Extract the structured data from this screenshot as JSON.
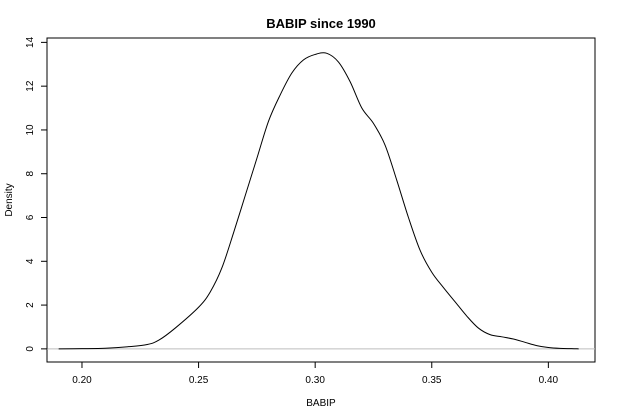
{
  "chart_data": {
    "type": "line",
    "title": "BABIP since 1990",
    "xlabel": "BABIP",
    "ylabel": "Density",
    "xlim": [
      0.185,
      0.42
    ],
    "ylim": [
      -0.6,
      14.2
    ],
    "x_ticks": [
      0.2,
      0.25,
      0.3,
      0.35,
      0.4
    ],
    "x_tick_labels": [
      "0.20",
      "0.25",
      "0.30",
      "0.35",
      "0.40"
    ],
    "y_ticks": [
      0,
      2,
      4,
      6,
      8,
      10,
      12,
      14
    ],
    "y_tick_labels": [
      "0",
      "2",
      "4",
      "6",
      "8",
      "10",
      "12",
      "14"
    ],
    "reference_line_y": 0,
    "grid": false,
    "series": [
      {
        "x": [
          0.19,
          0.2,
          0.21,
          0.22,
          0.228,
          0.233,
          0.24,
          0.25,
          0.255,
          0.26,
          0.265,
          0.27,
          0.275,
          0.28,
          0.285,
          0.29,
          0.295,
          0.3,
          0.305,
          0.31,
          0.315,
          0.32,
          0.325,
          0.33,
          0.335,
          0.34,
          0.345,
          0.35,
          0.355,
          0.36,
          0.365,
          0.37,
          0.375,
          0.38,
          0.385,
          0.39,
          0.395,
          0.4,
          0.405,
          0.41,
          0.413
        ],
        "y": [
          0.0,
          0.01,
          0.03,
          0.1,
          0.2,
          0.4,
          0.95,
          1.9,
          2.6,
          3.7,
          5.3,
          7.0,
          8.7,
          10.4,
          11.6,
          12.6,
          13.2,
          13.45,
          13.5,
          13.1,
          12.2,
          11.0,
          10.3,
          9.3,
          7.7,
          6.0,
          4.5,
          3.5,
          2.8,
          2.15,
          1.5,
          0.95,
          0.65,
          0.55,
          0.45,
          0.3,
          0.15,
          0.06,
          0.02,
          0.01,
          0.0
        ]
      }
    ]
  }
}
